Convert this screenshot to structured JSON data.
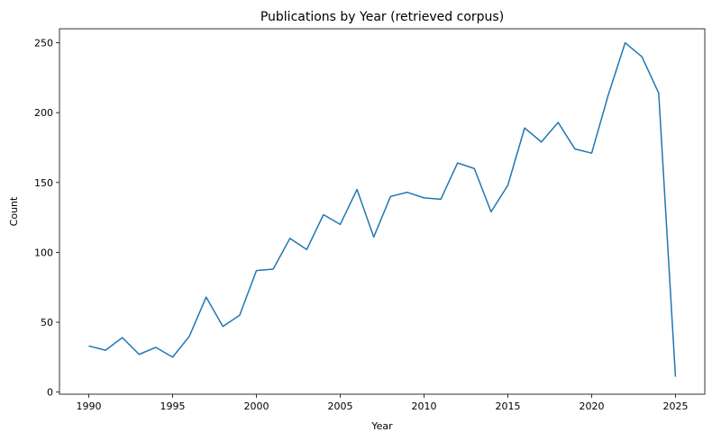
{
  "chart_data": {
    "type": "line",
    "title": "Publications by Year (retrieved corpus)",
    "xlabel": "Year",
    "ylabel": "Count",
    "xlim": [
      1988.25,
      2026.75
    ],
    "ylim": [
      -1.5,
      260
    ],
    "xticks": [
      1990,
      1995,
      2000,
      2005,
      2010,
      2015,
      2020,
      2025
    ],
    "yticks": [
      0,
      50,
      100,
      150,
      200,
      250
    ],
    "grid": false,
    "legend": "none",
    "line_color": "#1f77b4",
    "x": [
      1990,
      1991,
      1992,
      1993,
      1994,
      1995,
      1996,
      1997,
      1998,
      1999,
      2000,
      2001,
      2002,
      2003,
      2004,
      2005,
      2006,
      2007,
      2008,
      2009,
      2010,
      2011,
      2012,
      2013,
      2014,
      2015,
      2016,
      2017,
      2018,
      2019,
      2020,
      2021,
      2022,
      2023,
      2024,
      2025
    ],
    "y": [
      33,
      30,
      39,
      27,
      32,
      25,
      40,
      68,
      47,
      55,
      87,
      88,
      110,
      102,
      127,
      120,
      145,
      111,
      140,
      143,
      139,
      138,
      164,
      160,
      129,
      148,
      189,
      179,
      193,
      174,
      171,
      213,
      250,
      240,
      214,
      11
    ]
  }
}
